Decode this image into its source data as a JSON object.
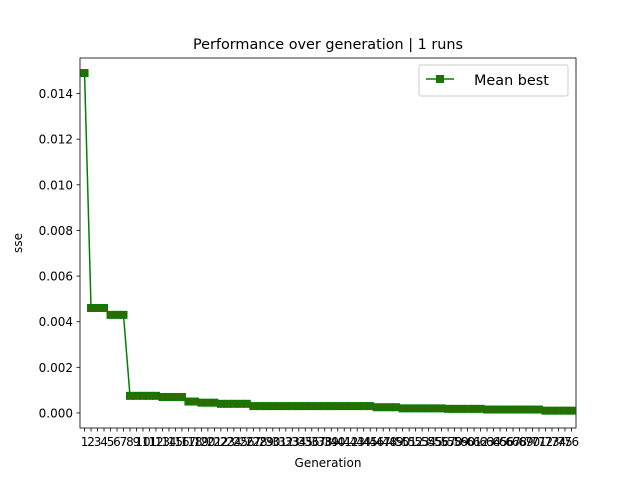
{
  "chart_data": {
    "type": "line",
    "title": "Performance over generation | 1 runs",
    "xlabel": "Generation",
    "ylabel": "sse",
    "x": [
      1,
      2,
      3,
      4,
      5,
      6,
      7,
      8,
      9,
      10,
      11,
      12,
      13,
      14,
      15,
      16,
      17,
      18,
      19,
      20,
      21,
      22,
      23,
      24,
      25,
      26,
      27,
      28,
      29,
      30,
      31,
      32,
      33,
      34,
      35,
      36,
      37,
      38,
      39,
      40,
      41,
      42,
      43,
      44,
      45,
      46,
      47,
      48,
      49,
      50,
      51,
      52,
      53,
      54,
      55,
      56,
      57,
      58,
      59,
      60,
      61,
      62,
      63,
      64,
      65,
      66,
      67,
      68,
      69,
      70,
      71,
      72,
      73,
      74,
      75,
      76
    ],
    "series": [
      {
        "name": "Mean best",
        "color": "#008000",
        "marker_face": "#2e6b00",
        "values": [
          0.0149,
          0.0046,
          0.0046,
          0.0046,
          0.0043,
          0.0043,
          0.0043,
          0.00075,
          0.00075,
          0.00075,
          0.00075,
          0.00075,
          0.0007,
          0.0007,
          0.0007,
          0.0007,
          0.0005,
          0.0005,
          0.00045,
          0.00045,
          0.00045,
          0.0004,
          0.0004,
          0.0004,
          0.0004,
          0.0004,
          0.0003,
          0.0003,
          0.0003,
          0.0003,
          0.0003,
          0.0003,
          0.0003,
          0.0003,
          0.0003,
          0.0003,
          0.0003,
          0.0003,
          0.0003,
          0.0003,
          0.0003,
          0.0003,
          0.0003,
          0.0003,
          0.0003,
          0.00025,
          0.00025,
          0.00025,
          0.00025,
          0.0002,
          0.0002,
          0.0002,
          0.0002,
          0.0002,
          0.0002,
          0.0002,
          0.00018,
          0.00018,
          0.00018,
          0.00018,
          0.00018,
          0.00018,
          0.00015,
          0.00015,
          0.00015,
          0.00015,
          0.00015,
          0.00015,
          0.00015,
          0.00015,
          0.00015,
          0.0001,
          0.0001,
          0.0001,
          0.0001,
          0.0001
        ]
      }
    ],
    "xtick_labels": [
      "1",
      "2",
      "3",
      "4",
      "5",
      "6",
      "7",
      "8",
      "9",
      "10",
      "11",
      "12",
      "13",
      "14",
      "15",
      "16",
      "17",
      "18",
      "19",
      "20",
      "21",
      "22",
      "23",
      "24",
      "25",
      "26",
      "27",
      "28",
      "29",
      "30",
      "31",
      "32",
      "33",
      "34",
      "35",
      "36",
      "37",
      "38",
      "39",
      "40",
      "41",
      "42",
      "43",
      "44",
      "45",
      "46",
      "47",
      "48",
      "49",
      "50",
      "51",
      "52",
      "53",
      "54",
      "55",
      "56",
      "57",
      "58",
      "59",
      "60",
      "61",
      "62",
      "63",
      "64",
      "65",
      "66",
      "67",
      "68",
      "69",
      "70",
      "71",
      "72",
      "73",
      "74",
      "75",
      "76"
    ],
    "yticks": [
      0.0,
      0.002,
      0.004,
      0.006,
      0.008,
      0.01,
      0.012,
      0.014
    ],
    "ytick_labels": [
      "0.000",
      "0.002",
      "0.004",
      "0.006",
      "0.008",
      "0.010",
      "0.012",
      "0.014"
    ],
    "xlim": [
      0.3,
      76.7
    ],
    "ylim": [
      -0.00066,
      0.01556
    ],
    "legend": "top-right",
    "grid": false
  }
}
